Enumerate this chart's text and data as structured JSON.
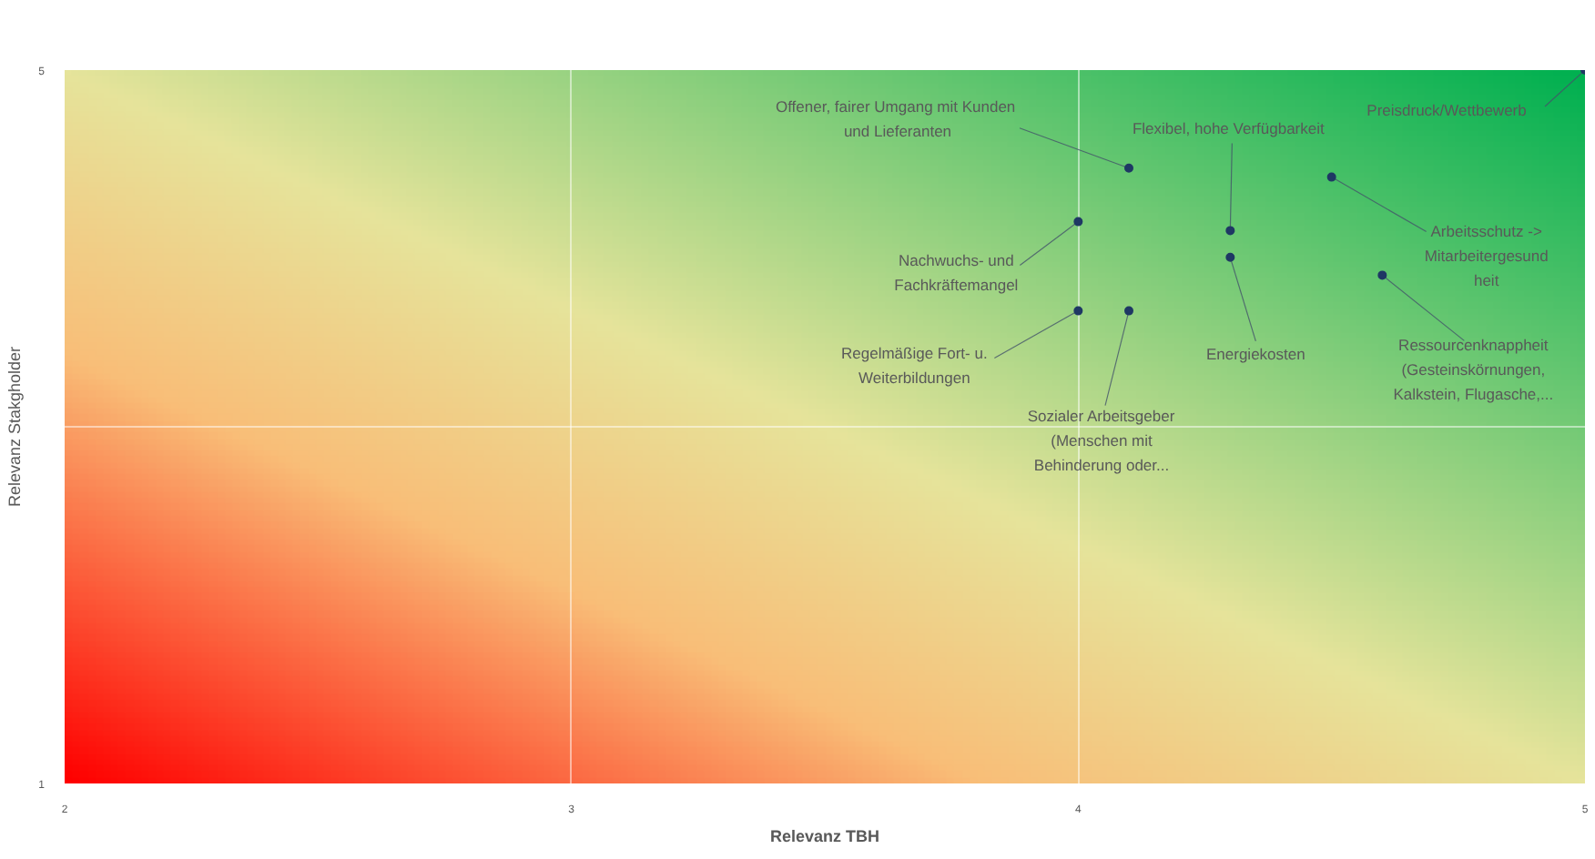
{
  "chart_data": {
    "type": "scatter",
    "xlabel": "Relevanz TBH",
    "ylabel": "Relevanz Stakgholder",
    "x": [
      5,
      4.1,
      4.5,
      4.0,
      4.3,
      4.3,
      4.6,
      4.0,
      4.1
    ],
    "series": [
      {
        "color": "#1f3864",
        "values": [
          5,
          4.45,
          4.4,
          4.15,
          4.1,
          3.95,
          3.85,
          3.65,
          3.65
        ]
      }
    ],
    "annotations": [
      {
        "text": "Preisdruck/Wettbewerb",
        "x": 5,
        "y": 5
      },
      {
        "text": "Offener,  fairer Umgang mit Kunden und Lieferanten",
        "x": 4.1,
        "y": 4.45
      },
      {
        "text": "Arbeitsschutz -> Mitarbeitergesund heit",
        "x": 4.5,
        "y": 4.4
      },
      {
        "text": "Nachwuchs- und Fachkräftemangel",
        "x": 4.0,
        "y": 4.15
      },
      {
        "text": "Flexibel, hohe Verfügbarkeit",
        "x": 4.3,
        "y": 4.1
      },
      {
        "text": "Energiekosten",
        "x": 4.3,
        "y": 3.95
      },
      {
        "text": "Ressourcenknappheit (Gesteinskörnungen, Kalkstein, Flugasche,...",
        "x": 4.6,
        "y": 3.85
      },
      {
        "text": "Regelmäßige Fort- u. Weiterbildungen",
        "x": 4.0,
        "y": 3.65
      },
      {
        "text": "Sozialer Arbeitsgeber (Menschen mit Behinderung oder...",
        "x": 4.1,
        "y": 3.65
      }
    ],
    "xlim": [
      2,
      5
    ],
    "ylim": [
      1,
      5
    ],
    "xticks": [
      2,
      3,
      4,
      5
    ],
    "yticks": [
      1,
      {
        "value": 3,
        "label": null
      },
      5
    ],
    "grid": true,
    "marker": "circle"
  }
}
